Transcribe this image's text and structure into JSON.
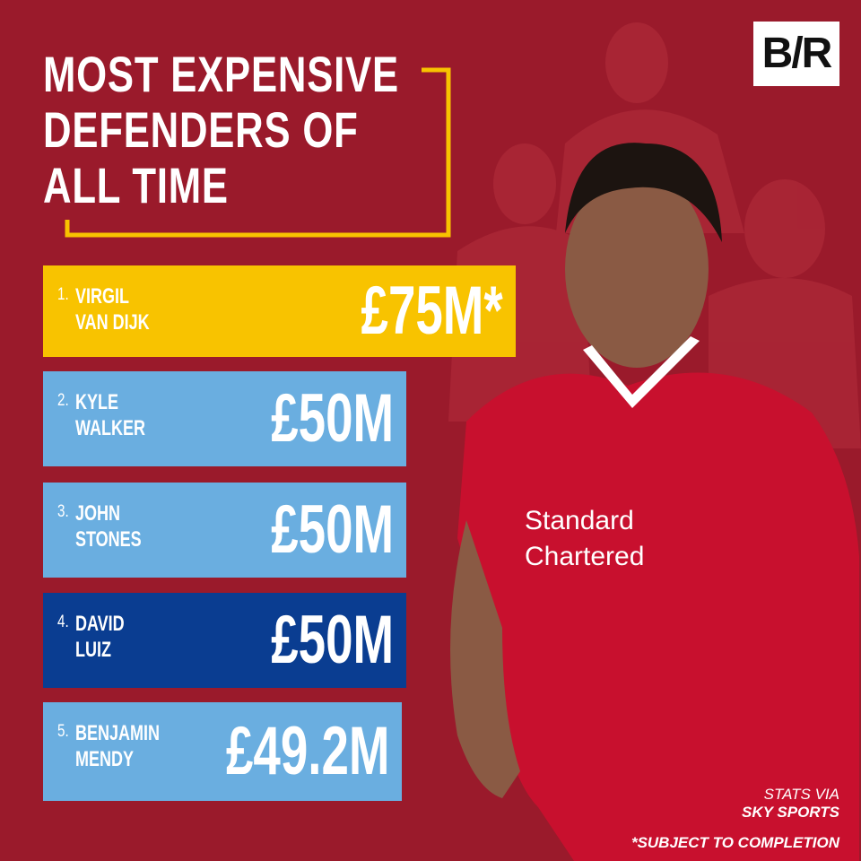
{
  "logo": "B/R",
  "title": [
    "MOST EXPENSIVE",
    "DEFENDERS OF",
    "ALL TIME"
  ],
  "rows": [
    {
      "rank": "1.",
      "name": [
        "VIRGIL",
        "VAN DIJK"
      ],
      "fee": "£75M*"
    },
    {
      "rank": "2.",
      "name": [
        "KYLE",
        "WALKER"
      ],
      "fee": "£50M"
    },
    {
      "rank": "3.",
      "name": [
        "JOHN",
        "STONES"
      ],
      "fee": "£50M"
    },
    {
      "rank": "4.",
      "name": [
        "DAVID",
        "LUIZ"
      ],
      "fee": "£50M"
    },
    {
      "rank": "5.",
      "name": [
        "BENJAMIN",
        "MENDY"
      ],
      "fee": "£49.2M"
    }
  ],
  "source": [
    "STATS VIA",
    "SKY SPORTS"
  ],
  "footnote": "*SUBJECT TO COMPLETION"
}
